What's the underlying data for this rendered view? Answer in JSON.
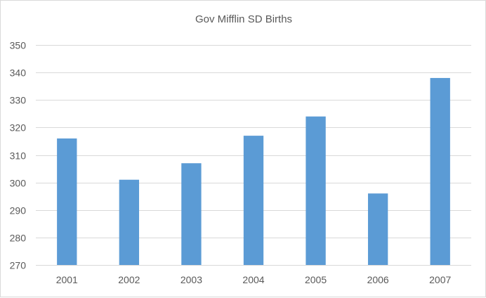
{
  "chart_data": {
    "type": "bar",
    "title": "Gov Mifflin SD Births",
    "xlabel": "",
    "ylabel": "",
    "categories": [
      "2001",
      "2002",
      "2003",
      "2004",
      "2005",
      "2006",
      "2007"
    ],
    "values": [
      316,
      301,
      307,
      317,
      324,
      296,
      338
    ],
    "ylim": [
      270,
      350
    ],
    "yticks": [
      270,
      280,
      290,
      300,
      310,
      320,
      330,
      340,
      350
    ],
    "grid": true,
    "legend": "none",
    "bar_color": "#5b9bd5",
    "grid_color": "#d9d9d9",
    "text_color": "#595959"
  }
}
